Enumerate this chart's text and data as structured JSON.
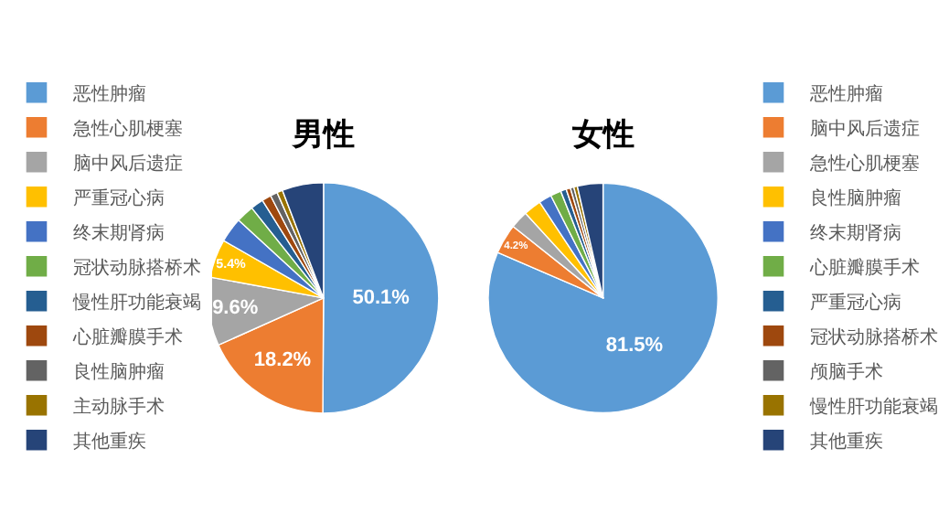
{
  "chart_data": [
    {
      "type": "pie",
      "title": "男性",
      "legend": "left",
      "categories": [
        "恶性肿瘤",
        "急性心肌梗塞",
        "脑中风后遗症",
        "严重冠心病",
        "终末期肾病",
        "冠状动脉搭桥术",
        "慢性肝功能衰竭",
        "心脏瓣膜手术",
        "良性脑肿瘤",
        "主动脉手术",
        "其他重疾"
      ],
      "values": [
        50.1,
        18.2,
        9.6,
        5.4,
        3.5,
        2.5,
        1.8,
        1.3,
        1.0,
        0.8,
        5.8
      ],
      "value_labels": [
        "50.1%",
        "18.2%",
        "9.6%",
        "5.4%",
        null,
        null,
        null,
        null,
        null,
        null,
        null
      ],
      "colors": [
        "#5b9bd5",
        "#ed7d31",
        "#a5a5a5",
        "#ffc000",
        "#4472c4",
        "#70ad47",
        "#255e91",
        "#9e480e",
        "#636363",
        "#997300",
        "#264478"
      ]
    },
    {
      "type": "pie",
      "title": "女性",
      "legend": "right",
      "categories": [
        "恶性肿瘤",
        "脑中风后遗症",
        "急性心肌梗塞",
        "良性脑肿瘤",
        "终末期肾病",
        "心脏瓣膜手术",
        "严重冠心病",
        "冠状动脉搭桥术",
        "颅脑手术",
        "慢性肝功能衰竭",
        "其他重疾"
      ],
      "values": [
        81.5,
        4.2,
        2.5,
        2.5,
        1.8,
        1.5,
        0.8,
        0.6,
        0.5,
        0.5,
        3.6
      ],
      "value_labels": [
        "81.5%",
        "4.2%",
        null,
        null,
        null,
        null,
        null,
        null,
        null,
        null,
        null
      ],
      "colors": [
        "#5b9bd5",
        "#ed7d31",
        "#a5a5a5",
        "#ffc000",
        "#4472c4",
        "#70ad47",
        "#255e91",
        "#9e480e",
        "#636363",
        "#997300",
        "#264478"
      ]
    }
  ]
}
